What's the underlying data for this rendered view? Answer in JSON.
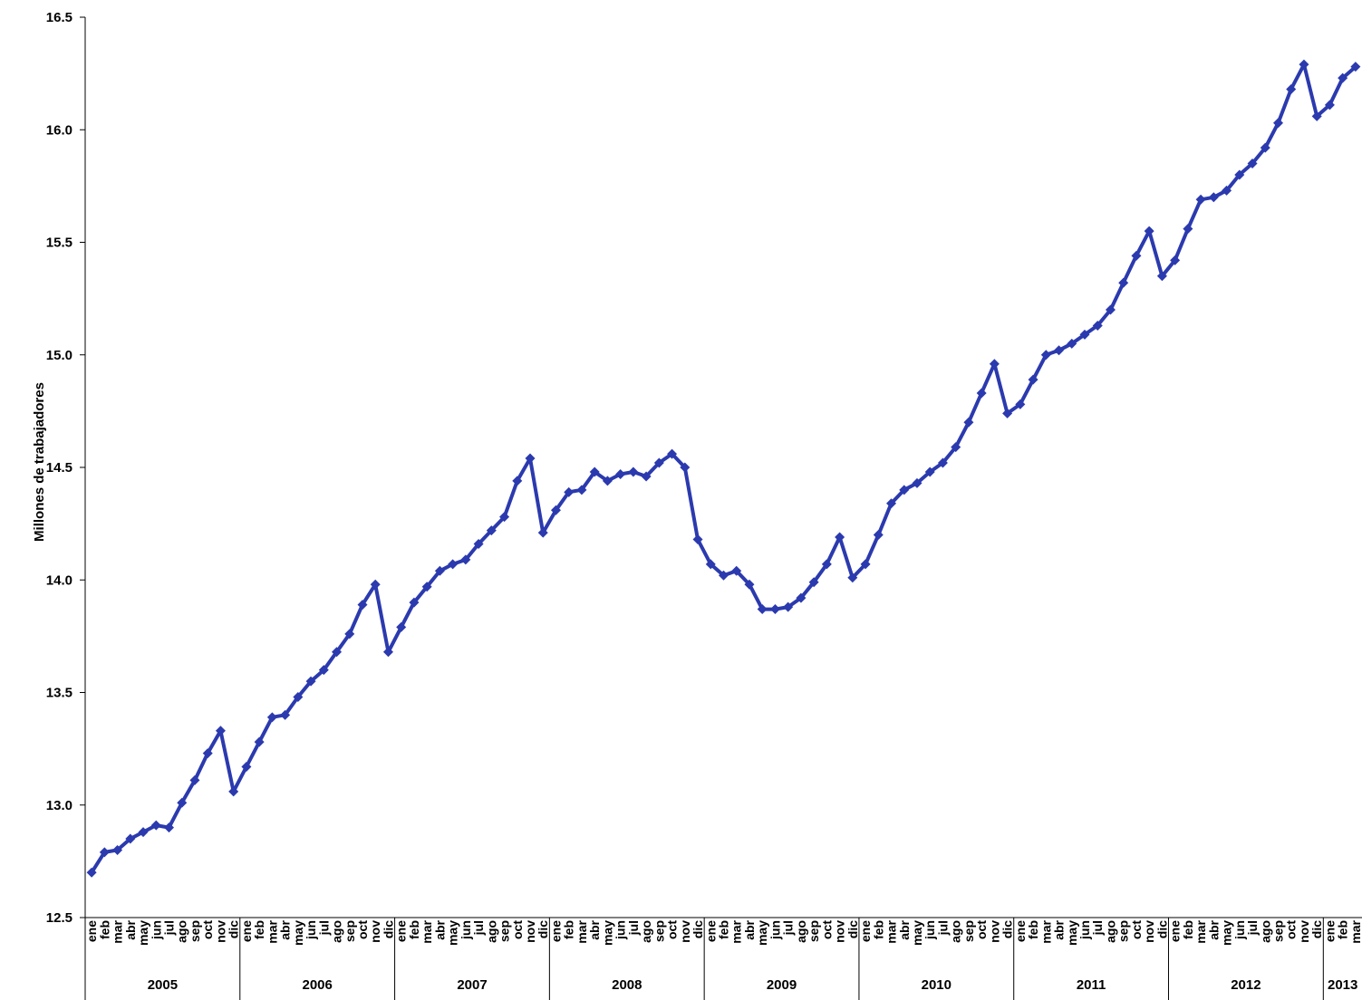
{
  "chart_data": {
    "type": "line",
    "title": "",
    "xlabel": "",
    "ylabel": "Millones de trabajadores",
    "ylim": [
      12.5,
      16.5
    ],
    "yticks": [
      "16.5",
      "16.0",
      "15.5",
      "15.0",
      "14.5",
      "14.0",
      "13.5",
      "13.0",
      "12.5"
    ],
    "grid": false,
    "legend": "none",
    "colors": {
      "series": "#2B3AAE",
      "axis": "#000000"
    },
    "month_labels": [
      "ene",
      "feb",
      "mar",
      "abr",
      "may",
      "jun",
      "jul",
      "ago",
      "sep",
      "oct",
      "nov",
      "dic"
    ],
    "years": [
      {
        "label": "2005",
        "months": 12
      },
      {
        "label": "2006",
        "months": 12
      },
      {
        "label": "2007",
        "months": 12
      },
      {
        "label": "2008",
        "months": 12
      },
      {
        "label": "2009",
        "months": 12
      },
      {
        "label": "2010",
        "months": 12
      },
      {
        "label": "2011",
        "months": 12
      },
      {
        "label": "2012",
        "months": 12
      },
      {
        "label": "2013",
        "months": 3
      }
    ],
    "series": [
      {
        "values": [
          12.7,
          12.79,
          12.8,
          12.85,
          12.88,
          12.91,
          12.9,
          13.01,
          13.11,
          13.23,
          13.33,
          13.06,
          13.17,
          13.28,
          13.39,
          13.4,
          13.48,
          13.55,
          13.6,
          13.68,
          13.76,
          13.89,
          13.98,
          13.68,
          13.79,
          13.9,
          13.97,
          14.04,
          14.07,
          14.09,
          14.16,
          14.22,
          14.28,
          14.44,
          14.54,
          14.21,
          14.31,
          14.39,
          14.4,
          14.48,
          14.44,
          14.47,
          14.48,
          14.46,
          14.52,
          14.56,
          14.5,
          14.18,
          14.07,
          14.02,
          14.04,
          13.98,
          13.87,
          13.87,
          13.88,
          13.92,
          13.99,
          14.07,
          14.19,
          14.01,
          14.07,
          14.2,
          14.34,
          14.4,
          14.43,
          14.48,
          14.52,
          14.59,
          14.7,
          14.83,
          14.96,
          14.74,
          14.78,
          14.89,
          15.0,
          15.02,
          15.05,
          15.09,
          15.13,
          15.2,
          15.32,
          15.44,
          15.55,
          15.35,
          15.42,
          15.56,
          15.69,
          15.7,
          15.73,
          15.8,
          15.85,
          15.92,
          16.03,
          16.18,
          16.29,
          16.06,
          16.11,
          16.23,
          16.28
        ]
      }
    ]
  }
}
